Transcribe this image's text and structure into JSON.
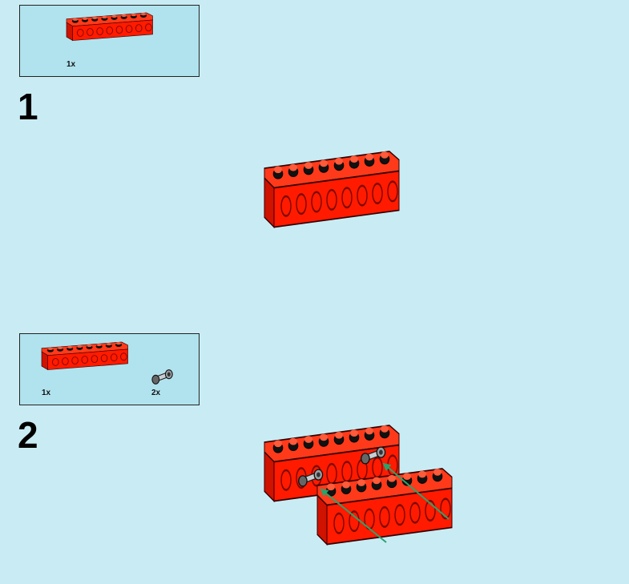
{
  "steps": [
    {
      "number": "1",
      "parts": [
        {
          "qty": "1x",
          "part": "red-technic-beam-8"
        }
      ]
    },
    {
      "number": "2",
      "parts": [
        {
          "qty": "1x",
          "part": "red-technic-beam-8"
        },
        {
          "qty": "2x",
          "part": "gray-friction-pin"
        }
      ]
    }
  ],
  "colors": {
    "background": "#c9ecf4",
    "parts_box": "#b1e3ee",
    "brick_red": "#ff1a00",
    "arrow_green": "#2aa36b",
    "pin_gray": "#9aa0a4"
  }
}
